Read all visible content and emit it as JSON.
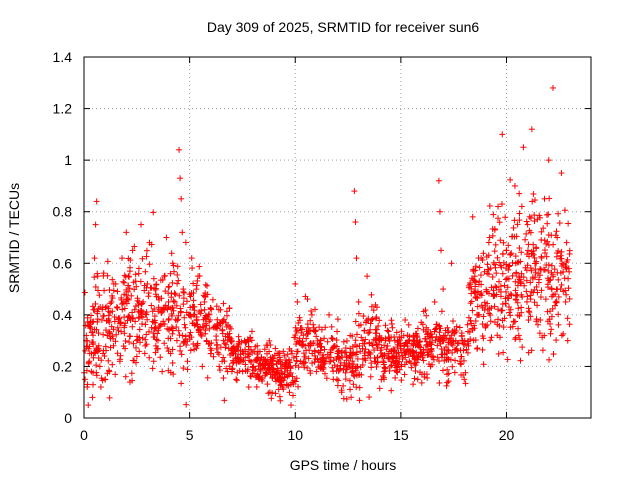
{
  "chart_data": {
    "type": "scatter",
    "title": "Day 309 of 2025, SRMTID for receiver sun6",
    "xlabel": "GPS time / hours",
    "ylabel": "SRMTID / TECUs",
    "xlim": [
      0,
      24
    ],
    "ylim": [
      0,
      1.4
    ],
    "x_ticks": [
      0,
      5,
      10,
      15,
      20
    ],
    "x_tick_labels": [
      "0",
      "5",
      "10",
      "15",
      "20"
    ],
    "y_ticks": [
      0,
      0.2,
      0.4,
      0.6,
      0.8,
      1.0,
      1.2,
      1.4
    ],
    "y_tick_labels": [
      "0",
      "0.2",
      "0.4",
      "0.6",
      "0.8",
      "1",
      "1.2",
      "1.4"
    ],
    "grid": true,
    "marker": "+",
    "color": "#ff0000",
    "series": [
      {
        "name": "SRMTID",
        "points": [
          [
            0.05,
            0.15
          ],
          [
            0.1,
            0.3
          ],
          [
            0.15,
            0.12
          ],
          [
            0.2,
            0.05
          ],
          [
            0.25,
            0.22
          ],
          [
            0.3,
            0.35
          ],
          [
            0.35,
            0.18
          ],
          [
            0.4,
            0.08
          ],
          [
            0.45,
            0.42
          ],
          [
            0.5,
            0.62
          ],
          [
            0.55,
            0.75
          ],
          [
            0.6,
            0.84
          ],
          [
            0.65,
            0.55
          ],
          [
            0.7,
            0.28
          ],
          [
            0.75,
            0.2
          ],
          [
            0.8,
            0.12
          ],
          [
            0.85,
            0.38
          ],
          [
            0.9,
            0.25
          ],
          [
            1.0,
            0.15
          ],
          [
            1.1,
            0.32
          ],
          [
            1.2,
            0.18
          ],
          [
            1.3,
            0.45
          ],
          [
            1.4,
            0.28
          ],
          [
            1.5,
            0.52
          ],
          [
            1.6,
            0.35
          ],
          [
            1.7,
            0.22
          ],
          [
            1.8,
            0.62
          ],
          [
            1.9,
            0.48
          ],
          [
            2.0,
            0.72
          ],
          [
            2.1,
            0.55
          ],
          [
            2.2,
            0.38
          ],
          [
            2.3,
            0.65
          ],
          [
            2.4,
            0.42
          ],
          [
            2.5,
            0.3
          ],
          [
            2.6,
            0.58
          ],
          [
            2.7,
            0.75
          ],
          [
            2.8,
            0.45
          ],
          [
            2.9,
            0.28
          ],
          [
            3.0,
            0.52
          ],
          [
            3.1,
            0.68
          ],
          [
            3.2,
            0.35
          ],
          [
            3.3,
            0.22
          ],
          [
            3.4,
            0.48
          ],
          [
            3.5,
            0.3
          ],
          [
            3.6,
            0.42
          ],
          [
            3.7,
            0.18
          ],
          [
            3.8,
            0.55
          ],
          [
            3.9,
            0.7
          ],
          [
            4.0,
            0.38
          ],
          [
            4.1,
            0.25
          ],
          [
            4.2,
            0.6
          ],
          [
            4.3,
            0.45
          ],
          [
            4.4,
            0.3
          ],
          [
            4.5,
            1.04
          ],
          [
            4.55,
            0.93
          ],
          [
            4.6,
            0.85
          ],
          [
            4.65,
            0.72
          ],
          [
            4.7,
            0.5
          ],
          [
            4.8,
            0.35
          ],
          [
            4.9,
            0.22
          ],
          [
            5.0,
            0.48
          ],
          [
            5.1,
            0.62
          ],
          [
            5.2,
            0.4
          ],
          [
            5.3,
            0.28
          ],
          [
            5.4,
            0.55
          ],
          [
            5.5,
            0.35
          ],
          [
            5.6,
            0.2
          ],
          [
            5.7,
            0.45
          ],
          [
            5.8,
            0.3
          ],
          [
            5.9,
            0.4
          ],
          [
            6.0,
            0.25
          ],
          [
            6.2,
            0.35
          ],
          [
            6.4,
            0.2
          ],
          [
            6.6,
            0.3
          ],
          [
            6.8,
            0.18
          ],
          [
            7.0,
            0.25
          ],
          [
            7.2,
            0.15
          ],
          [
            7.4,
            0.22
          ],
          [
            7.6,
            0.3
          ],
          [
            7.8,
            0.12
          ],
          [
            8.0,
            0.2
          ],
          [
            8.2,
            0.28
          ],
          [
            8.4,
            0.15
          ],
          [
            8.6,
            0.22
          ],
          [
            8.8,
            0.1
          ],
          [
            9.0,
            0.18
          ],
          [
            9.2,
            0.25
          ],
          [
            9.4,
            0.12
          ],
          [
            9.6,
            0.2
          ],
          [
            9.8,
            0.05
          ],
          [
            10.0,
            0.52
          ],
          [
            10.1,
            0.45
          ],
          [
            10.2,
            0.3
          ],
          [
            10.4,
            0.22
          ],
          [
            10.6,
            0.35
          ],
          [
            10.8,
            0.25
          ],
          [
            11.0,
            0.18
          ],
          [
            11.2,
            0.3
          ],
          [
            11.4,
            0.22
          ],
          [
            11.6,
            0.4
          ],
          [
            11.8,
            0.15
          ],
          [
            12.0,
            0.25
          ],
          [
            12.2,
            0.1
          ],
          [
            12.4,
            0.2
          ],
          [
            12.6,
            0.32
          ],
          [
            12.8,
            0.88
          ],
          [
            12.85,
            0.76
          ],
          [
            12.9,
            0.62
          ],
          [
            13.0,
            0.45
          ],
          [
            13.2,
            0.3
          ],
          [
            13.4,
            0.55
          ],
          [
            13.6,
            0.38
          ],
          [
            13.8,
            0.22
          ],
          [
            14.0,
            0.3
          ],
          [
            14.2,
            0.15
          ],
          [
            14.4,
            0.25
          ],
          [
            14.6,
            0.35
          ],
          [
            14.8,
            0.18
          ],
          [
            15.0,
            0.28
          ],
          [
            15.2,
            0.38
          ],
          [
            15.4,
            0.22
          ],
          [
            15.6,
            0.3
          ],
          [
            15.8,
            0.15
          ],
          [
            16.0,
            0.25
          ],
          [
            16.2,
            0.35
          ],
          [
            16.4,
            0.2
          ],
          [
            16.6,
            0.45
          ],
          [
            16.8,
            0.92
          ],
          [
            16.85,
            0.8
          ],
          [
            16.9,
            0.65
          ],
          [
            17.0,
            0.5
          ],
          [
            17.2,
            0.35
          ],
          [
            17.4,
            0.6
          ],
          [
            17.6,
            0.3
          ],
          [
            17.8,
            0.22
          ],
          [
            18.0,
            0.15
          ],
          [
            18.2,
            0.28
          ],
          [
            18.4,
            0.78
          ],
          [
            18.5,
            0.55
          ],
          [
            18.6,
            0.4
          ],
          [
            18.8,
            0.62
          ],
          [
            19.0,
            0.35
          ],
          [
            19.2,
            0.7
          ],
          [
            19.4,
            0.48
          ],
          [
            19.6,
            0.82
          ],
          [
            19.8,
            1.1
          ],
          [
            20.0,
            0.65
          ],
          [
            20.2,
            0.42
          ],
          [
            20.4,
            0.9
          ],
          [
            20.6,
            0.55
          ],
          [
            20.8,
            1.05
          ],
          [
            21.0,
            0.75
          ],
          [
            21.2,
            1.12
          ],
          [
            21.4,
            0.6
          ],
          [
            21.6,
            0.38
          ],
          [
            21.8,
            0.85
          ],
          [
            22.0,
            1.0
          ],
          [
            22.2,
            1.28
          ],
          [
            22.4,
            0.7
          ],
          [
            22.6,
            0.95
          ],
          [
            22.8,
            0.45
          ],
          [
            22.9,
            0.3
          ],
          [
            22.95,
            0.58
          ]
        ]
      }
    ],
    "envelope_segments": [
      {
        "x_start": 0.0,
        "x_end": 0.5,
        "y_center": 0.28,
        "spread": 0.2,
        "density": 40
      },
      {
        "x_start": 0.5,
        "x_end": 1.0,
        "y_center": 0.35,
        "spread": 0.25,
        "density": 40
      },
      {
        "x_start": 1.0,
        "x_end": 2.0,
        "y_center": 0.38,
        "spread": 0.22,
        "density": 80
      },
      {
        "x_start": 2.0,
        "x_end": 3.5,
        "y_center": 0.42,
        "spread": 0.24,
        "density": 120
      },
      {
        "x_start": 3.5,
        "x_end": 5.0,
        "y_center": 0.38,
        "spread": 0.22,
        "density": 110
      },
      {
        "x_start": 5.0,
        "x_end": 6.0,
        "y_center": 0.38,
        "spread": 0.18,
        "density": 80
      },
      {
        "x_start": 6.0,
        "x_end": 7.0,
        "y_center": 0.3,
        "spread": 0.14,
        "density": 70
      },
      {
        "x_start": 7.0,
        "x_end": 8.0,
        "y_center": 0.24,
        "spread": 0.1,
        "density": 80
      },
      {
        "x_start": 8.0,
        "x_end": 9.0,
        "y_center": 0.2,
        "spread": 0.08,
        "density": 90
      },
      {
        "x_start": 9.0,
        "x_end": 10.0,
        "y_center": 0.19,
        "spread": 0.09,
        "density": 90
      },
      {
        "x_start": 10.0,
        "x_end": 11.0,
        "y_center": 0.28,
        "spread": 0.12,
        "density": 80
      },
      {
        "x_start": 11.0,
        "x_end": 12.0,
        "y_center": 0.24,
        "spread": 0.1,
        "density": 70
      },
      {
        "x_start": 12.0,
        "x_end": 13.0,
        "y_center": 0.22,
        "spread": 0.12,
        "density": 80
      },
      {
        "x_start": 13.0,
        "x_end": 14.0,
        "y_center": 0.28,
        "spread": 0.14,
        "density": 80
      },
      {
        "x_start": 14.0,
        "x_end": 15.0,
        "y_center": 0.24,
        "spread": 0.1,
        "density": 90
      },
      {
        "x_start": 15.0,
        "x_end": 16.0,
        "y_center": 0.26,
        "spread": 0.1,
        "density": 90
      },
      {
        "x_start": 16.0,
        "x_end": 17.0,
        "y_center": 0.28,
        "spread": 0.12,
        "density": 80
      },
      {
        "x_start": 17.0,
        "x_end": 18.2,
        "y_center": 0.26,
        "spread": 0.12,
        "density": 80
      },
      {
        "x_start": 18.2,
        "x_end": 19.0,
        "y_center": 0.45,
        "spread": 0.2,
        "density": 70
      },
      {
        "x_start": 19.0,
        "x_end": 20.0,
        "y_center": 0.52,
        "spread": 0.25,
        "density": 90
      },
      {
        "x_start": 20.0,
        "x_end": 21.0,
        "y_center": 0.55,
        "spread": 0.28,
        "density": 90
      },
      {
        "x_start": 21.0,
        "x_end": 22.0,
        "y_center": 0.58,
        "spread": 0.3,
        "density": 90
      },
      {
        "x_start": 22.0,
        "x_end": 23.0,
        "y_center": 0.55,
        "spread": 0.28,
        "density": 80
      }
    ]
  }
}
